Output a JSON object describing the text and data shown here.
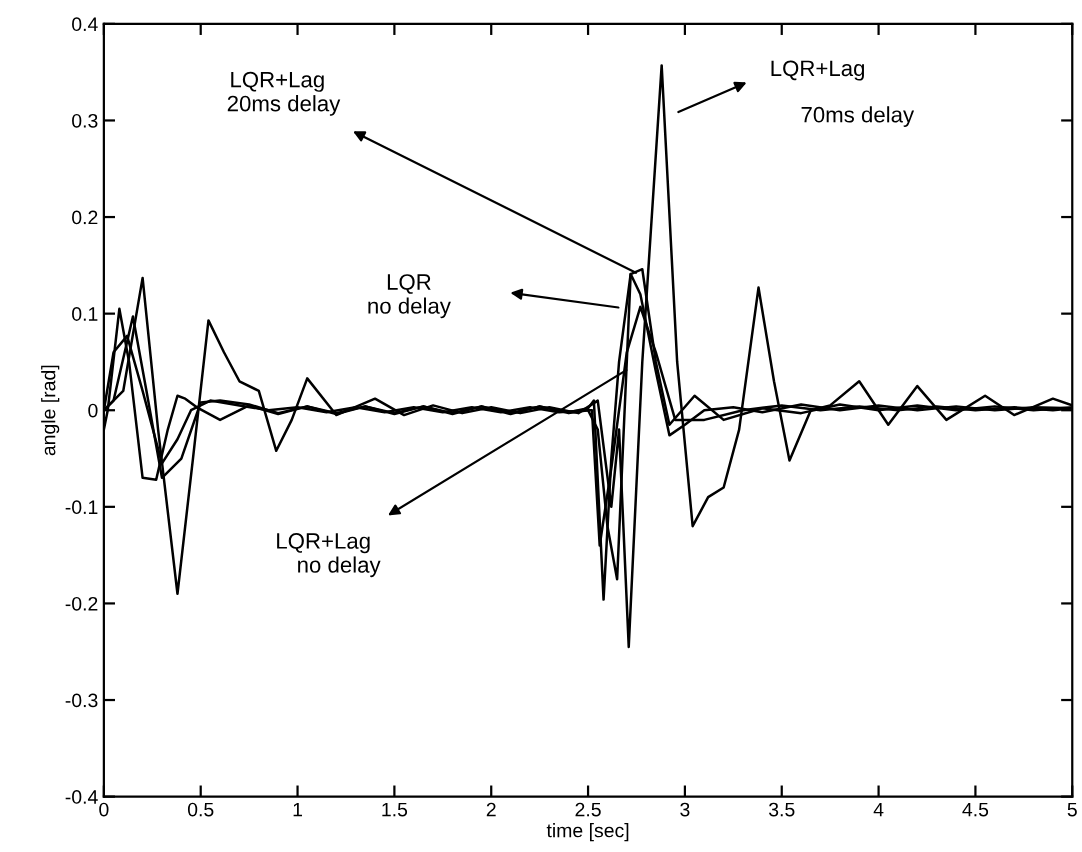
{
  "chart_data": {
    "type": "line",
    "xlabel": "time [sec]",
    "ylabel": "angle [rad]",
    "xlim": [
      0,
      5
    ],
    "ylim": [
      -0.4,
      0.4
    ],
    "xticks": [
      0,
      0.5,
      1,
      1.5,
      2,
      2.5,
      3,
      3.5,
      4,
      4.5,
      5
    ],
    "yticks": [
      -0.4,
      -0.3,
      -0.2,
      -0.1,
      0,
      0.1,
      0.2,
      0.3,
      0.4
    ],
    "grid": false,
    "legend": false,
    "line_style": "solid",
    "marker": "none",
    "series": [
      {
        "color": "#000000",
        "x": [
          0,
          0.05,
          0.12,
          0.2,
          0.3,
          0.38,
          0.45,
          0.55,
          0.7,
          0.85,
          1.0,
          1.15,
          1.3,
          1.45,
          1.6,
          1.75,
          1.9,
          2.05,
          2.2,
          2.35,
          2.5,
          2.52,
          2.56,
          2.62,
          2.7,
          2.77,
          2.85,
          2.95,
          3.1,
          3.3,
          3.5,
          3.7,
          3.9,
          4.1,
          4.3,
          4.5,
          4.7,
          4.9,
          5
        ],
        "values": [
          0,
          0.06,
          0.077,
          0.02,
          -0.055,
          -0.03,
          0.0,
          0.01,
          0.005,
          0.0,
          0.003,
          -0.002,
          0.003,
          -0.002,
          0.003,
          -0.002,
          0.003,
          -0.002,
          0.003,
          -0.002,
          0.0,
          0.0,
          -0.14,
          -0.06,
          0.06,
          0.107,
          0.06,
          -0.01,
          -0.01,
          0.0,
          0.005,
          0.0,
          0.004,
          0.0,
          0.004,
          0.0,
          0.003,
          0.0,
          0.002
        ]
      },
      {
        "color": "#000000",
        "x": [
          0,
          0.02,
          0.08,
          0.13,
          0.2,
          0.27,
          0.33,
          0.38,
          0.42,
          0.48,
          0.6,
          0.75,
          0.9,
          1.05,
          1.2,
          1.35,
          1.5,
          1.65,
          1.8,
          1.95,
          2.1,
          2.25,
          2.4,
          2.5,
          2.53,
          2.58,
          2.62,
          2.66,
          2.72,
          2.77,
          2.85,
          2.92,
          3.0,
          3.1,
          3.25,
          3.4,
          3.6,
          3.8,
          4.0,
          4.2,
          4.4,
          4.6,
          4.8,
          5
        ],
        "values": [
          -0.02,
          0.0,
          0.105,
          0.05,
          -0.07,
          -0.072,
          -0.02,
          0.015,
          0.012,
          0.003,
          -0.01,
          0.005,
          -0.004,
          0.004,
          -0.004,
          0.004,
          -0.004,
          0.004,
          -0.004,
          0.004,
          -0.004,
          0.004,
          -0.002,
          0.002,
          0.01,
          -0.196,
          -0.05,
          0.05,
          0.141,
          0.12,
          0.04,
          -0.026,
          -0.015,
          0.0,
          0.003,
          -0.002,
          0.006,
          0.0,
          0.005,
          0.0,
          0.004,
          0.0,
          0.003,
          0.002
        ]
      },
      {
        "color": "#000000",
        "x": [
          0,
          0.05,
          0.15,
          0.22,
          0.3,
          0.4,
          0.5,
          0.6,
          0.75,
          0.9,
          1.05,
          1.2,
          1.35,
          1.5,
          1.65,
          1.8,
          1.95,
          2.1,
          2.25,
          2.4,
          2.5,
          2.55,
          2.6,
          2.65,
          2.72,
          2.78,
          2.85,
          2.92,
          3.05,
          3.2,
          3.4,
          3.6,
          3.8,
          4.0,
          4.2,
          4.4,
          4.6,
          4.8,
          5
        ],
        "values": [
          0,
          0.01,
          0.097,
          0.02,
          -0.07,
          -0.05,
          0.008,
          0.01,
          0.006,
          -0.003,
          0.004,
          -0.003,
          0.004,
          -0.003,
          0.004,
          -0.003,
          0.004,
          -0.003,
          0.004,
          -0.003,
          0.0,
          -0.02,
          -0.12,
          -0.175,
          0.141,
          0.146,
          0.05,
          -0.015,
          0.015,
          -0.01,
          0.002,
          -0.003,
          0.006,
          0.0,
          0.005,
          0.0,
          0.004,
          0.0,
          0.003
        ]
      },
      {
        "color": "#000000",
        "x": [
          0,
          0.1,
          0.2,
          0.28,
          0.38,
          0.46,
          0.54,
          0.62,
          0.7,
          0.8,
          0.89,
          0.97,
          1.05,
          1.2,
          1.4,
          1.55,
          1.7,
          1.85,
          2.0,
          2.15,
          2.3,
          2.45,
          2.55,
          2.62,
          2.66,
          2.71,
          2.78,
          2.88,
          2.96,
          3.04,
          3.12,
          3.2,
          3.28,
          3.38,
          3.46,
          3.54,
          3.65,
          3.75,
          3.9,
          4.05,
          4.2,
          4.35,
          4.55,
          4.7,
          4.9,
          5
        ],
        "values": [
          0,
          0.02,
          0.137,
          -0.02,
          -0.19,
          -0.05,
          0.093,
          0.06,
          0.03,
          0.02,
          -0.042,
          -0.01,
          0.033,
          -0.005,
          0.012,
          -0.005,
          0.005,
          -0.003,
          0.003,
          -0.003,
          0.003,
          -0.003,
          0.01,
          -0.1,
          -0.02,
          -0.245,
          0.05,
          0.357,
          0.05,
          -0.12,
          -0.09,
          -0.08,
          -0.02,
          0.127,
          0.03,
          -0.052,
          0.0,
          0.005,
          0.03,
          -0.015,
          0.025,
          -0.01,
          0.015,
          -0.005,
          0.012,
          0.005
        ]
      }
    ],
    "annotations": [
      {
        "text": "LQR+Lag\n  20ms delay",
        "x": 2.76,
        "y": 0.141
      },
      "LQR\nno delay",
      {
        "text": "LQR+Lag\n     no delay",
        "x": 2.71,
        "y": 0.043
      },
      "LQR+Lag",
      "70ms delay"
    ]
  }
}
